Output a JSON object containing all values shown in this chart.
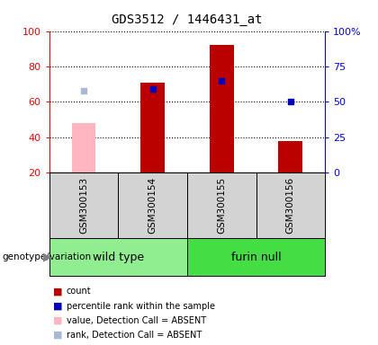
{
  "title": "GDS3512 / 1446431_at",
  "samples": [
    "GSM300153",
    "GSM300154",
    "GSM300155",
    "GSM300156"
  ],
  "groups": [
    {
      "name": "wild type",
      "samples": [
        0,
        1
      ],
      "color": "#90ee90"
    },
    {
      "name": "furin null",
      "samples": [
        2,
        3
      ],
      "color": "#44dd44"
    }
  ],
  "count_values": [
    null,
    71,
    92,
    38
  ],
  "count_absent": [
    48,
    null,
    null,
    null
  ],
  "percentile_values": [
    null,
    59,
    65,
    50
  ],
  "percentile_absent": [
    58,
    null,
    null,
    null
  ],
  "ylim_left": [
    20,
    100
  ],
  "ylim_right": [
    0,
    100
  ],
  "yticks_left": [
    20,
    40,
    60,
    80,
    100
  ],
  "yticks_right": [
    0,
    25,
    50,
    75,
    100
  ],
  "yticklabels_right": [
    "0",
    "25",
    "50",
    "75",
    "100%"
  ],
  "bar_color_present": "#bb0000",
  "bar_color_absent": "#ffb6c1",
  "marker_color_present": "#0000bb",
  "marker_color_absent": "#aab8d8",
  "bar_width": 0.35,
  "bar_bottom": 20,
  "group_label_x": "genotype/variation",
  "legend_items": [
    {
      "color": "#bb0000",
      "label": "count"
    },
    {
      "color": "#0000bb",
      "label": "percentile rank within the sample"
    },
    {
      "color": "#ffb6c1",
      "label": "value, Detection Call = ABSENT"
    },
    {
      "color": "#aab8d8",
      "label": "rank, Detection Call = ABSENT"
    }
  ]
}
